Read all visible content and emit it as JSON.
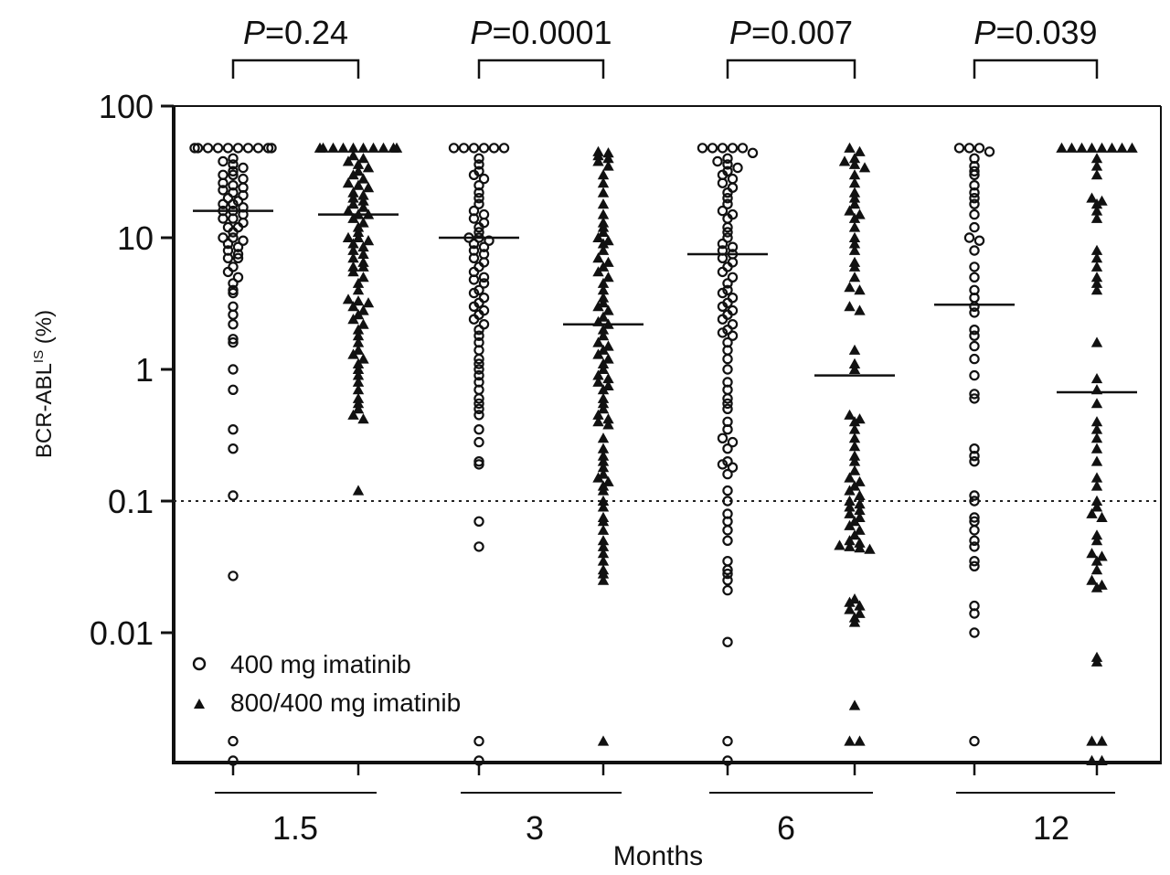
{
  "chart_data": {
    "type": "scatter",
    "subtype": "dot-plot",
    "xlabel": "Months",
    "ylabel": "BCR-ABL",
    "ylabel_superscript": "IS",
    "ylabel_suffix": " (%)",
    "yscale": "log",
    "ylim": [
      0.001,
      100
    ],
    "yticks": [
      {
        "value": 100,
        "label": "100"
      },
      {
        "value": 10,
        "label": "10"
      },
      {
        "value": 1,
        "label": "1"
      },
      {
        "value": 0.1,
        "label": "0.1"
      },
      {
        "value": 0.01,
        "label": "0.01"
      }
    ],
    "reference_line": {
      "value": 0.1,
      "style": "dotted"
    },
    "legend": [
      {
        "name": "400 mg imatinib",
        "marker": "open-circle"
      },
      {
        "name": "800/400 mg imatinib",
        "marker": "filled-triangle"
      }
    ],
    "groups": [
      {
        "label": "1.5",
        "p_prefix": "P",
        "p_value": "=0.24",
        "series": [
          {
            "name": "400 mg imatinib",
            "median": 16,
            "values": [
              48,
              48,
              48,
              48,
              48,
              48,
              48,
              48,
              48,
              48,
              40,
              38,
              36,
              34,
              32,
              30,
              30,
              28,
              26,
              25,
              24,
              23,
              22,
              21,
              20,
              19,
              18,
              18,
              17,
              16,
              16,
              15,
              14,
              14,
              13,
              12,
              12,
              11,
              10,
              10,
              9.5,
              9,
              8.5,
              8,
              7.5,
              7,
              7,
              6,
              5.5,
              5,
              4.5,
              4,
              3.8,
              3,
              2.6,
              2.2,
              1.7,
              1.6,
              1,
              0.7,
              0.35,
              0.25,
              0.11,
              0.027,
              0.0015,
              0.001
            ]
          },
          {
            "name": "800/400 mg imatinib",
            "median": 15,
            "values": [
              48,
              48,
              48,
              48,
              48,
              48,
              48,
              48,
              48,
              48,
              42,
              40,
              38,
              36,
              34,
              32,
              30,
              28,
              26,
              25,
              24,
              22,
              21,
              20,
              19,
              18,
              17,
              16,
              15,
              15,
              14,
              13,
              12,
              11,
              10,
              10,
              9.5,
              9,
              8.5,
              8,
              7.5,
              7,
              6.5,
              6,
              6,
              5.5,
              5,
              4.5,
              4,
              3.4,
              3.3,
              3.2,
              3,
              2.8,
              2.6,
              2.4,
              2.2,
              2,
              1.8,
              1.6,
              1.4,
              1.3,
              1.2,
              1.1,
              1,
              0.9,
              0.8,
              0.7,
              0.6,
              0.55,
              0.5,
              0.45,
              0.42,
              0.12
            ]
          }
        ]
      },
      {
        "label": "3",
        "p_prefix": "P",
        "p_value": "=0.0001",
        "series": [
          {
            "name": "400 mg imatinib",
            "median": 10,
            "values": [
              48,
              48,
              48,
              48,
              48,
              48,
              40,
              36,
              32,
              30,
              28,
              25,
              22,
              20,
              18,
              16,
              15,
              14,
              13,
              12,
              11,
              10,
              10,
              9.5,
              9,
              8.5,
              8,
              7.5,
              7,
              6.5,
              6,
              5.5,
              5,
              4.8,
              4.5,
              4,
              3.8,
              3.5,
              3.2,
              3,
              2.8,
              2.6,
              2.4,
              2.2,
              2,
              1.8,
              1.6,
              1.4,
              1.2,
              1.1,
              1,
              0.9,
              0.8,
              0.7,
              0.6,
              0.55,
              0.5,
              0.45,
              0.35,
              0.28,
              0.2,
              0.19,
              0.07,
              0.045,
              0.0015,
              0.001
            ]
          },
          {
            "name": "800/400 mg imatinib",
            "median": 2.2,
            "values": [
              45,
              44,
              42,
              40,
              38,
              35,
              30,
              26,
              22,
              18,
              15,
              13,
              12,
              11,
              10,
              9.5,
              9,
              8,
              7,
              6.5,
              6,
              5.5,
              5,
              4.5,
              4,
              3.5,
              3.2,
              3,
              2.8,
              2.5,
              2.3,
              2.2,
              2,
              1.8,
              1.6,
              1.5,
              1.4,
              1.3,
              1.2,
              1.1,
              1,
              0.9,
              0.85,
              0.8,
              0.75,
              0.7,
              0.6,
              0.55,
              0.5,
              0.45,
              0.42,
              0.4,
              0.38,
              0.3,
              0.25,
              0.22,
              0.2,
              0.18,
              0.16,
              0.15,
              0.14,
              0.13,
              0.12,
              0.1,
              0.09,
              0.075,
              0.07,
              0.06,
              0.05,
              0.045,
              0.04,
              0.035,
              0.03,
              0.028,
              0.025,
              0.0015
            ]
          }
        ]
      },
      {
        "label": "6",
        "p_prefix": "P",
        "p_value": "=0.007",
        "series": [
          {
            "name": "400 mg imatinib",
            "median": 7.5,
            "values": [
              48,
              48,
              48,
              48,
              48,
              44,
              40,
              38,
              36,
              34,
              32,
              30,
              28,
              26,
              24,
              22,
              20,
              18,
              16,
              15,
              14,
              12,
              11,
              10,
              9,
              8.5,
              8,
              7.5,
              7,
              6.5,
              6,
              5.5,
              5,
              4.5,
              4,
              3.8,
              3.5,
              3.2,
              3,
              2.8,
              2.6,
              2.4,
              2.2,
              2,
              1.9,
              1.8,
              1.6,
              1.4,
              1.2,
              1,
              0.8,
              0.7,
              0.6,
              0.55,
              0.5,
              0.4,
              0.35,
              0.3,
              0.28,
              0.25,
              0.2,
              0.19,
              0.18,
              0.16,
              0.12,
              0.1,
              0.08,
              0.07,
              0.06,
              0.05,
              0.035,
              0.03,
              0.028,
              0.025,
              0.021,
              0.0085,
              0.0015,
              0.001
            ]
          },
          {
            "name": "800/400 mg imatinib",
            "median": 0.9,
            "values": [
              48,
              45,
              40,
              38,
              36,
              34,
              30,
              26,
              22,
              20,
              18,
              16,
              15,
              14,
              12,
              10,
              9,
              8,
              6.5,
              6,
              5,
              4.2,
              4,
              3,
              2.8,
              1.4,
              1.1,
              1,
              0.45,
              0.42,
              0.4,
              0.35,
              0.3,
              0.26,
              0.22,
              0.2,
              0.17,
              0.15,
              0.14,
              0.13,
              0.12,
              0.11,
              0.1,
              0.095,
              0.09,
              0.085,
              0.08,
              0.075,
              0.07,
              0.065,
              0.06,
              0.055,
              0.05,
              0.048,
              0.046,
              0.045,
              0.044,
              0.043,
              0.018,
              0.017,
              0.016,
              0.015,
              0.014,
              0.013,
              0.012,
              0.0028,
              0.0015,
              0.0015
            ]
          }
        ]
      },
      {
        "label": "12",
        "p_prefix": "P",
        "p_value": "=0.039",
        "series": [
          {
            "name": "400 mg imatinib",
            "median": 3.1,
            "values": [
              48,
              48,
              48,
              45,
              40,
              35,
              32,
              30,
              25,
              22,
              20,
              18,
              15,
              12,
              10,
              9.5,
              8,
              6,
              5,
              4,
              3.5,
              3,
              2.7,
              2,
              1.8,
              1.5,
              1.2,
              0.9,
              0.65,
              0.6,
              0.25,
              0.22,
              0.2,
              0.11,
              0.1,
              0.075,
              0.07,
              0.06,
              0.05,
              0.045,
              0.035,
              0.032,
              0.016,
              0.014,
              0.01,
              0.0015
            ]
          },
          {
            "name": "800/400 mg imatinib",
            "median": 0.67,
            "values": [
              48,
              48,
              48,
              48,
              48,
              48,
              48,
              48,
              40,
              35,
              30,
              20,
              19,
              18,
              16,
              14,
              8,
              7,
              6,
              5,
              4.5,
              4,
              1.6,
              0.85,
              0.7,
              0.55,
              0.4,
              0.35,
              0.3,
              0.25,
              0.2,
              0.15,
              0.13,
              0.1,
              0.09,
              0.08,
              0.075,
              0.055,
              0.05,
              0.04,
              0.038,
              0.035,
              0.03,
              0.025,
              0.023,
              0.022,
              0.0065,
              0.006,
              0.0015,
              0.0015,
              0.001,
              0.001
            ]
          }
        ]
      }
    ]
  }
}
